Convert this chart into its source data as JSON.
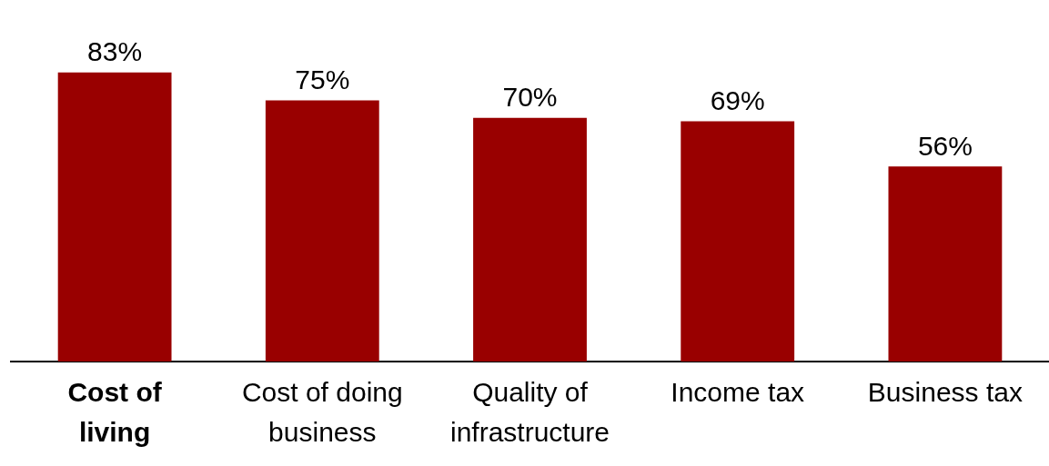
{
  "chart_data": {
    "type": "bar",
    "categories": [
      "Cost of\nliving",
      "Cost of doing\nbusiness",
      "Quality of\ninfrastructure",
      "Income tax",
      "Business tax"
    ],
    "values": [
      83,
      75,
      70,
      69,
      56
    ],
    "value_labels": [
      "83%",
      "75%",
      "70%",
      "69%",
      "56%"
    ],
    "color": "#990000",
    "grid": false,
    "legend": false
  }
}
